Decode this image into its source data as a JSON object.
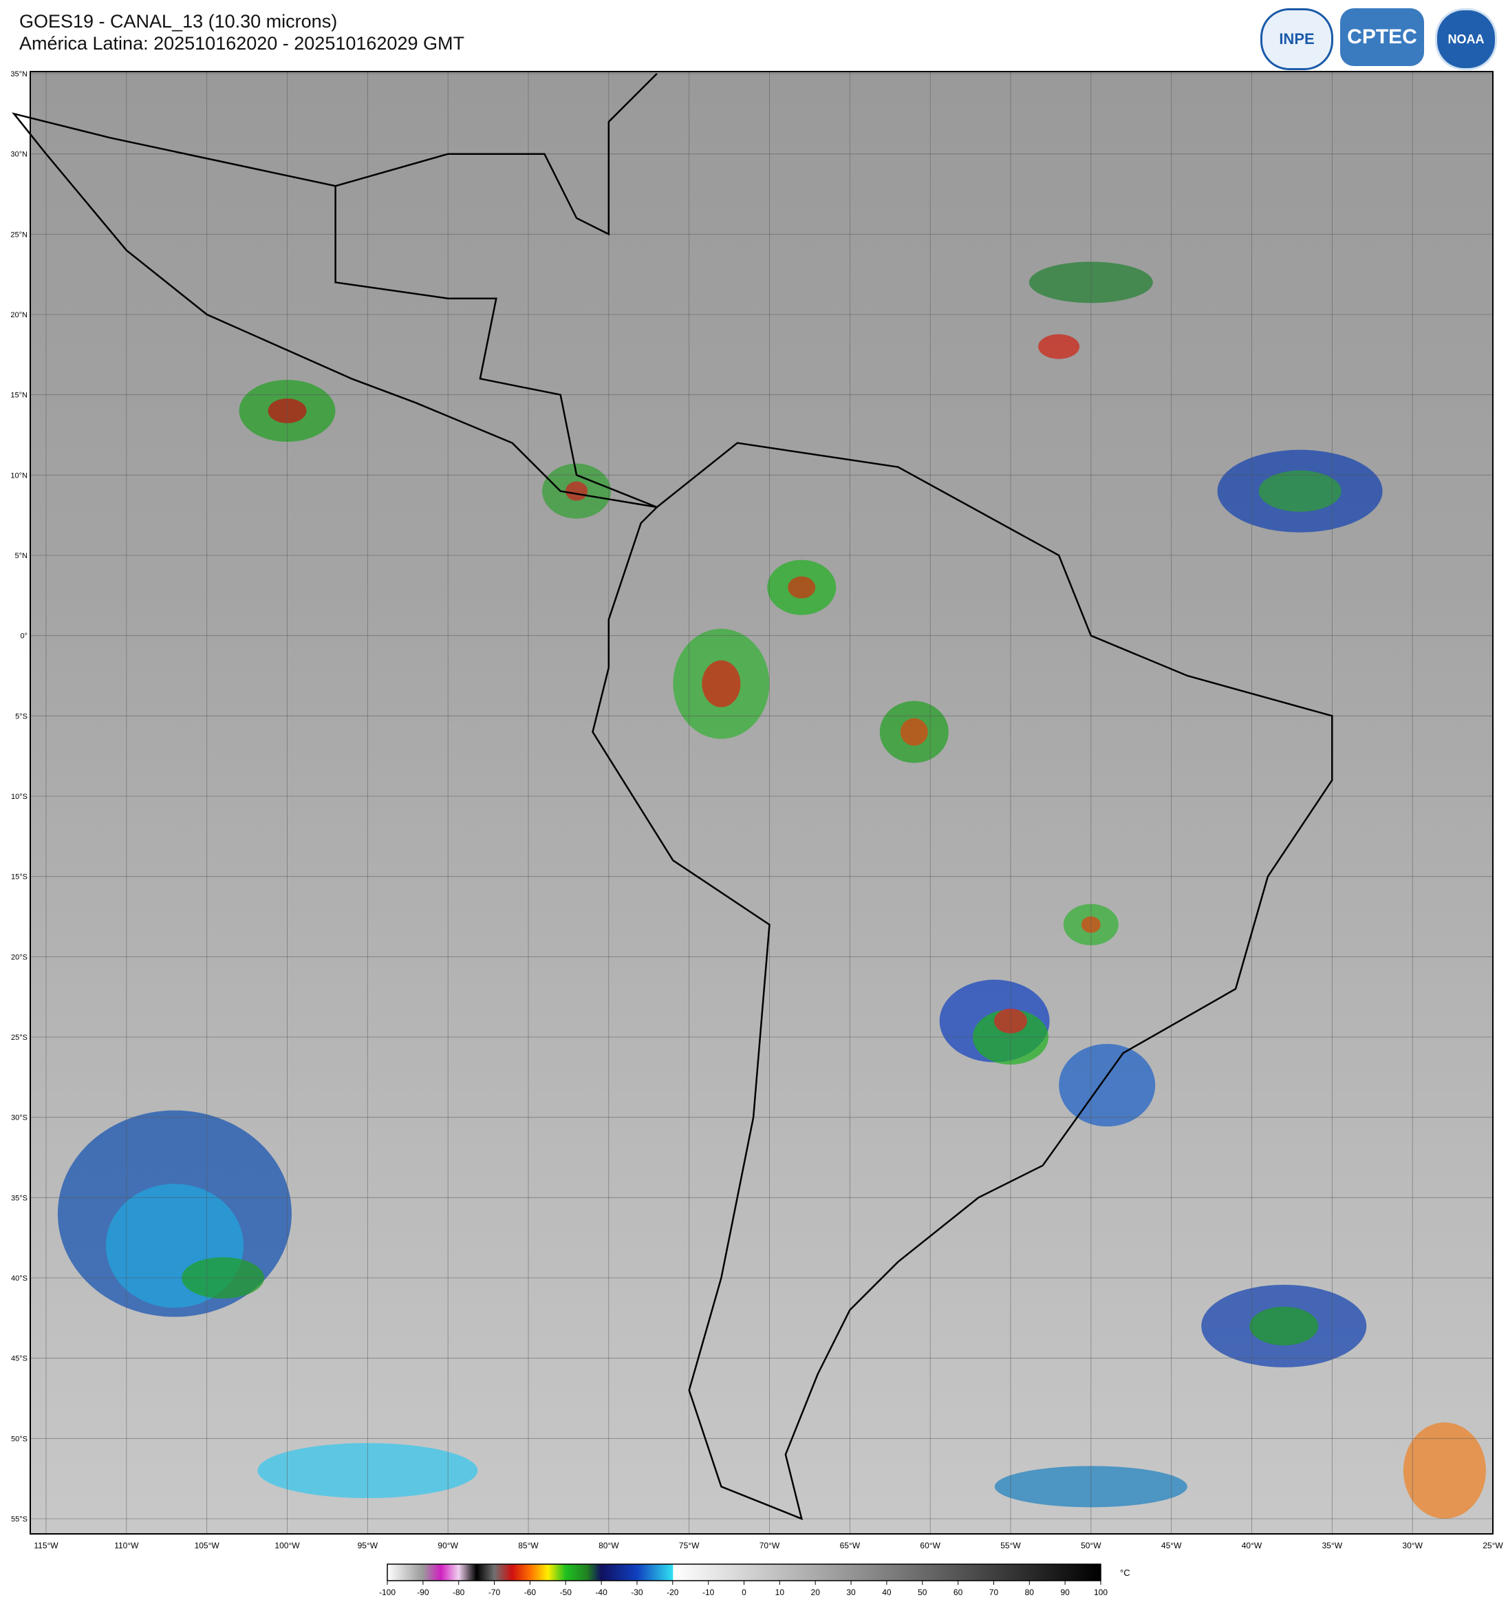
{
  "header": {
    "title": "GOES19 - CANAL_13 (10.30 microns)",
    "subtitle": "América Latina: 202510162020 - 202510162029 GMT"
  },
  "logos": [
    "INPE",
    "CPTEC",
    "NOAA"
  ],
  "map": {
    "lat_labels": [
      "35°N",
      "30°N",
      "25°N",
      "20°N",
      "15°N",
      "10°N",
      "5°N",
      "0°",
      "5°S",
      "10°S",
      "15°S",
      "20°S",
      "25°S",
      "30°S",
      "35°S",
      "40°S",
      "45°S",
      "50°S",
      "55°S"
    ],
    "lon_labels": [
      "115°W",
      "110°W",
      "105°W",
      "100°W",
      "95°W",
      "90°W",
      "85°W",
      "80°W",
      "75°W",
      "70°W",
      "65°W",
      "60°W",
      "55°W",
      "50°W",
      "45°W",
      "40°W",
      "35°W",
      "30°W",
      "25°W"
    ]
  },
  "colorbar": {
    "ticks": [
      -100,
      -90,
      -80,
      -70,
      -60,
      -50,
      -40,
      -30,
      -20,
      -10,
      0,
      10,
      20,
      30,
      40,
      50,
      60,
      70,
      80,
      90,
      100
    ],
    "unit": "°C"
  }
}
